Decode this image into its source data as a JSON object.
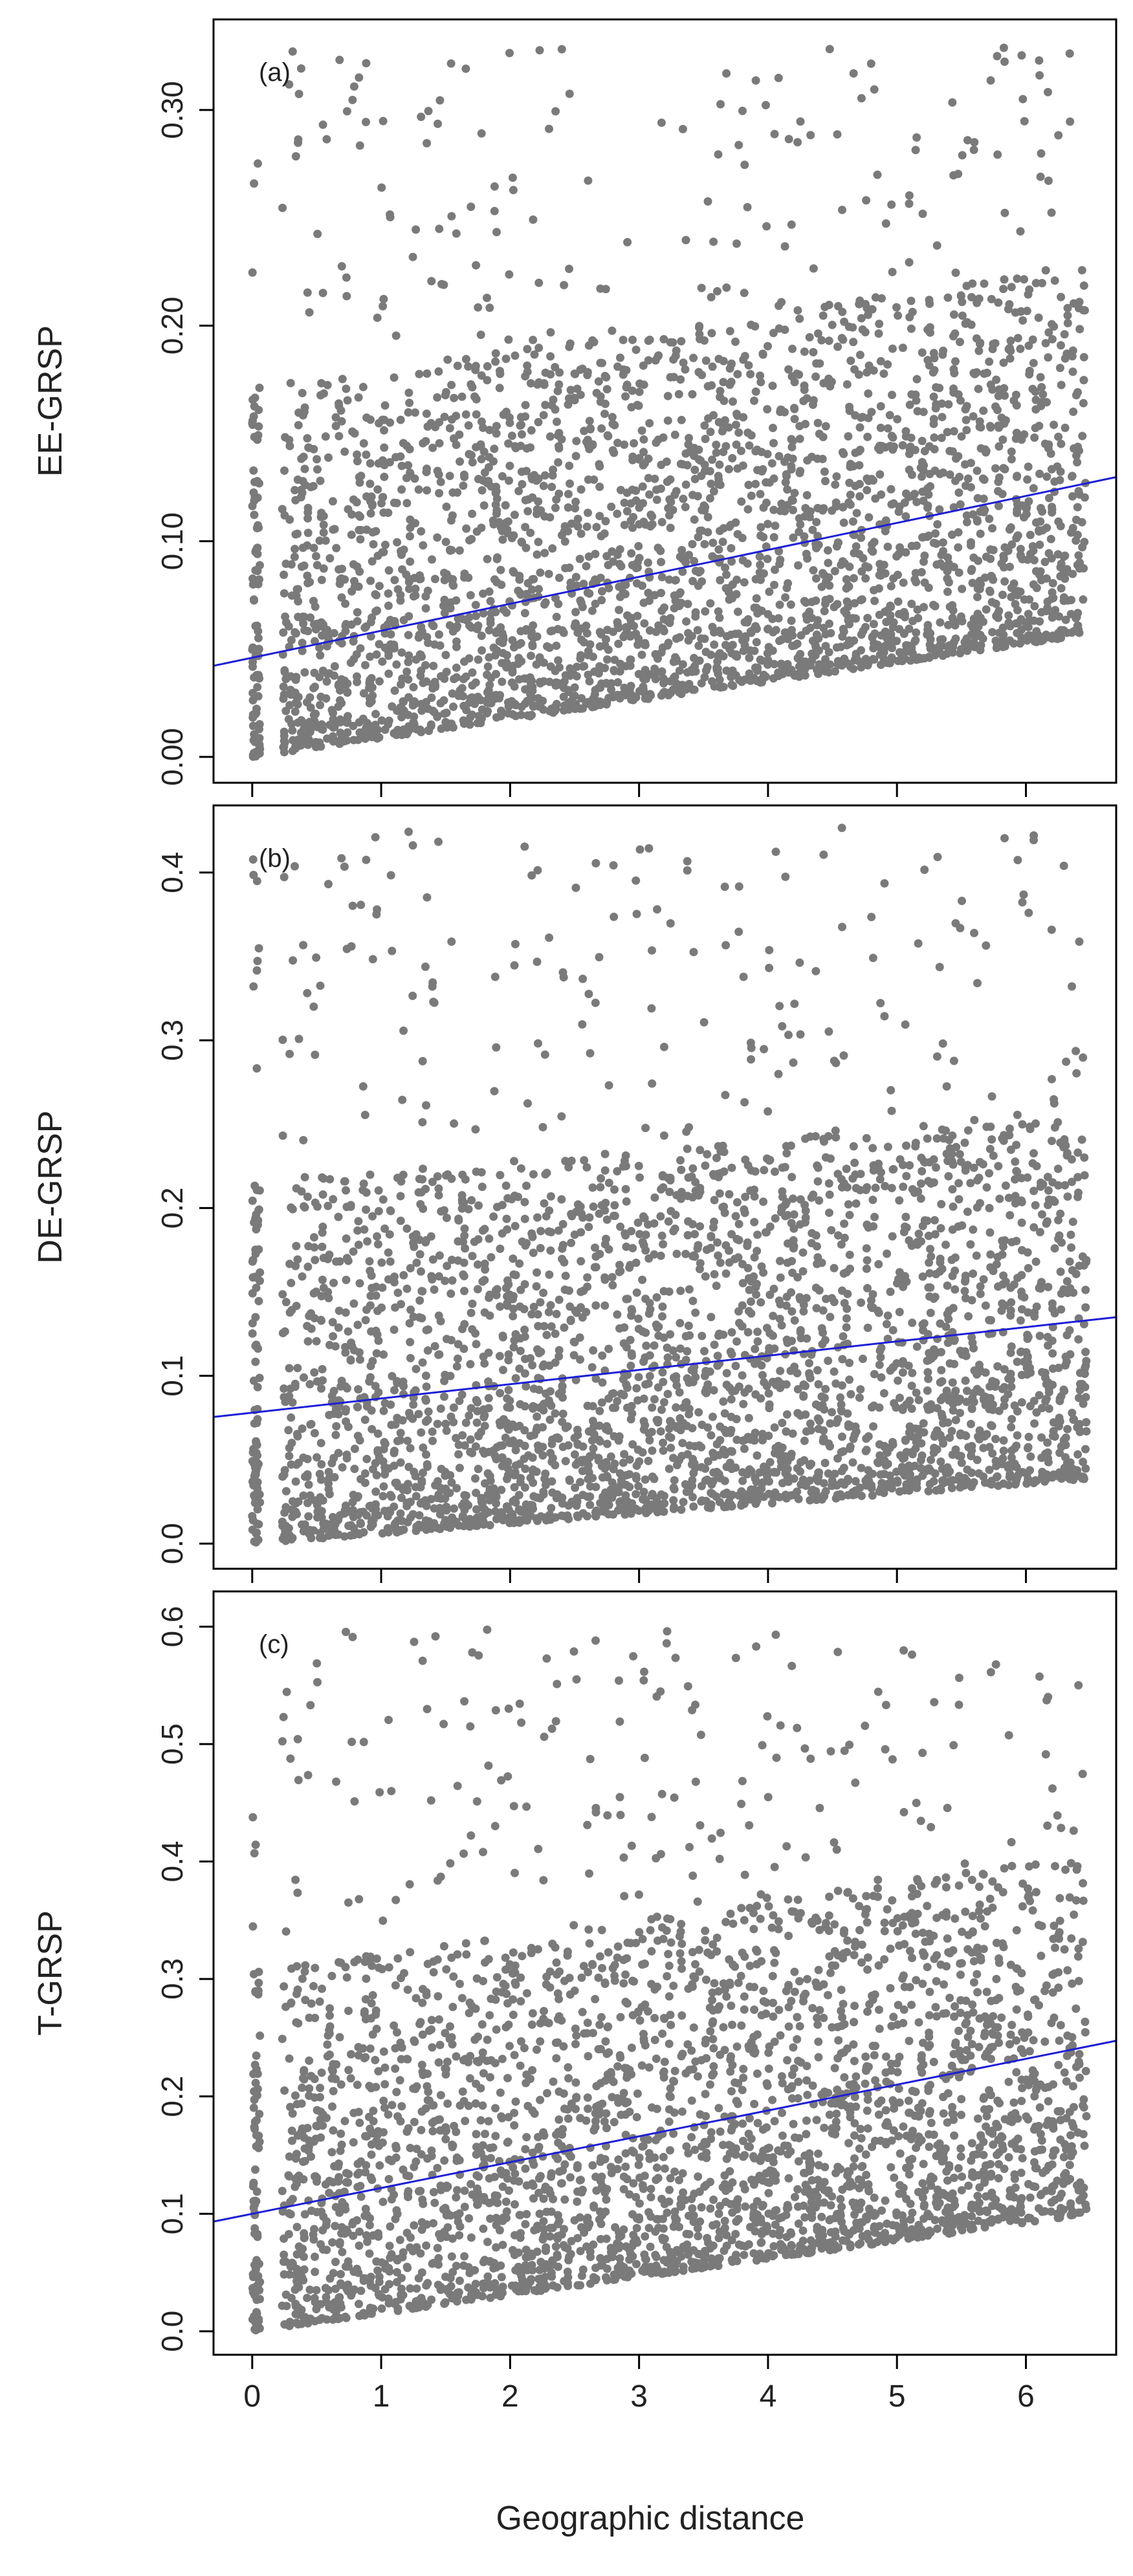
{
  "figure": {
    "xlabel": "Geographic distance"
  },
  "colors": {
    "points": "#7a7a7a",
    "fit_line": "#1f1fd6",
    "axis": "#000000",
    "background": "#ffffff"
  },
  "chart_data": [
    {
      "type": "scatter",
      "panel_label": "(a)",
      "ylabel": "EE-GRSP",
      "xlim": [
        -0.3,
        6.7
      ],
      "ylim": [
        -0.012,
        0.342
      ],
      "yticks": [
        0.0,
        0.1,
        0.2,
        0.3
      ],
      "ytick_labels": [
        "0.00",
        "0.10",
        "0.20",
        "0.30"
      ],
      "xticks": [
        0,
        1,
        2,
        3,
        4,
        5,
        6
      ],
      "show_xtick_labels": false,
      "fit_line": {
        "intercept": 0.046,
        "slope": 0.0125
      },
      "point_cloud": {
        "x_range": [
          0,
          6.5
        ],
        "y_range": [
          0.0,
          0.33
        ],
        "y_typical_max": 0.19,
        "approx_points": 3200
      }
    },
    {
      "type": "scatter",
      "panel_label": "(b)",
      "ylabel": "DE-GRSP",
      "xlim": [
        -0.3,
        6.7
      ],
      "ylim": [
        -0.015,
        0.44
      ],
      "yticks": [
        0.0,
        0.1,
        0.2,
        0.3,
        0.4
      ],
      "ytick_labels": [
        "0.0",
        "0.1",
        "0.2",
        "0.3",
        "0.4"
      ],
      "xticks": [
        0,
        1,
        2,
        3,
        4,
        5,
        6
      ],
      "show_xtick_labels": false,
      "fit_line": {
        "intercept": 0.078,
        "slope": 0.0085
      },
      "point_cloud": {
        "x_range": [
          0,
          6.5
        ],
        "y_range": [
          0.0,
          0.43
        ],
        "y_typical_max": 0.24,
        "approx_points": 3200
      }
    },
    {
      "type": "scatter",
      "panel_label": "(c)",
      "ylabel": "T-GRSP",
      "xlim": [
        -0.3,
        6.7
      ],
      "ylim": [
        -0.02,
        0.63
      ],
      "yticks": [
        0.0,
        0.1,
        0.2,
        0.3,
        0.4,
        0.5,
        0.6
      ],
      "ytick_labels": [
        "0.0",
        "0.1",
        "0.2",
        "0.3",
        "0.4",
        "0.5",
        "0.6"
      ],
      "xticks": [
        0,
        1,
        2,
        3,
        4,
        5,
        6
      ],
      "xtick_labels": [
        "0",
        "1",
        "2",
        "3",
        "4",
        "5",
        "6"
      ],
      "show_xtick_labels": true,
      "fit_line": {
        "intercept": 0.1,
        "slope": 0.022
      },
      "point_cloud": {
        "x_range": [
          0,
          6.5
        ],
        "y_range": [
          0.0,
          0.6
        ],
        "y_typical_max": 0.34,
        "approx_points": 3200
      }
    }
  ]
}
